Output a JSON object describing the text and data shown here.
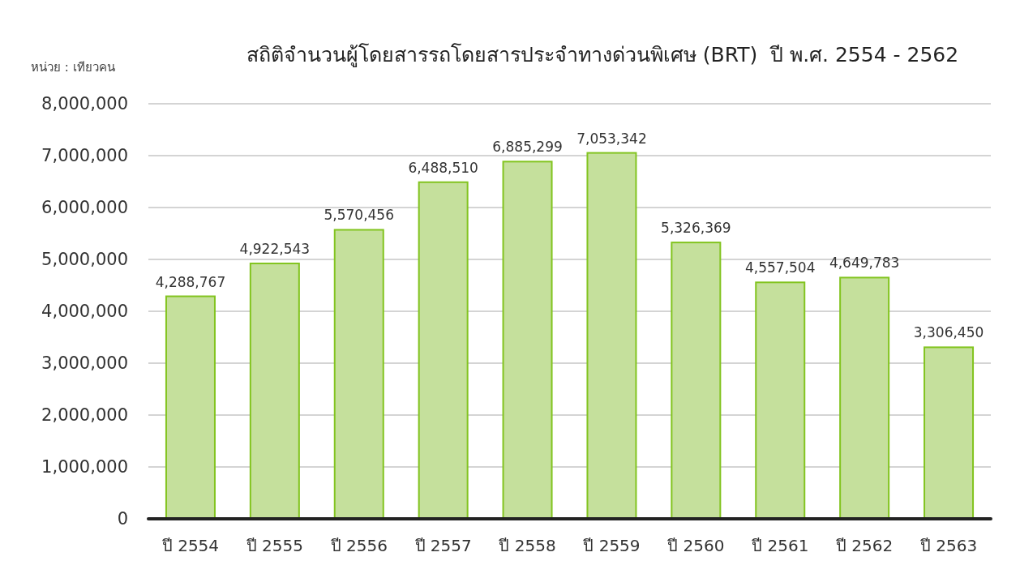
{
  "chart_data": {
    "type": "bar",
    "title": "สถิติจำนวนผู้โดยสารรถโดยสารประจำทางด่วนพิเศษ (BRT)  ปี พ.ศ. 2554 - 2562",
    "ylabel": "หน่วย : เทียวคน",
    "categories": [
      "ปี 2554",
      "ปี 2555",
      "ปี 2556",
      "ปี 2557",
      "ปี 2558",
      "ปี 2559",
      "ปี 2560",
      "ปี 2561",
      "ปี 2562",
      "ปี 2563"
    ],
    "values": [
      4288767,
      4922543,
      5570456,
      6488510,
      6885299,
      7053342,
      5326369,
      4557504,
      4649783,
      3306450
    ],
    "value_labels": [
      "4,288,767",
      "4,922,543",
      "5,570,456",
      "6,488,510",
      "6,885,299",
      "7,053,342",
      "5,326,369",
      "4,557,504",
      "4,649,783",
      "3,306,450"
    ],
    "color": "#c5e09c",
    "ylim": [
      0,
      8000000
    ],
    "yticks": [
      {
        "value": 0,
        "label": "0"
      },
      {
        "value": 1000000,
        "label": "1,000,000"
      },
      {
        "value": 2000000,
        "label": "2,000,000"
      },
      {
        "value": 3000000,
        "label": "3,000,000"
      },
      {
        "value": 4000000,
        "label": "4,000,000"
      },
      {
        "value": 5000000,
        "label": "5,000,000"
      },
      {
        "value": 6000000,
        "label": "6,000,000"
      },
      {
        "value": 7000000,
        "label": "7,000,000"
      },
      {
        "value": 8000000,
        "label": "8,000,000"
      }
    ],
    "grid": "y"
  }
}
